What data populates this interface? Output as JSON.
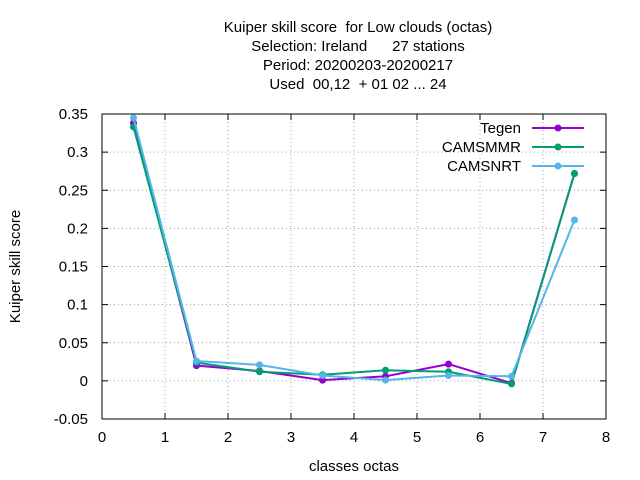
{
  "chart_data": {
    "type": "line",
    "title_lines": [
      "Kuiper skill score  for Low clouds (octas)",
      "Selection: Ireland      27 stations",
      "Period: 20200203-20200217",
      "Used  00,12  + 01 02 ... 24"
    ],
    "xlabel": "classes octas",
    "ylabel": "Kuiper skill score",
    "xlim": [
      0,
      8
    ],
    "ylim": [
      -0.05,
      0.35
    ],
    "xticks": [
      0,
      1,
      2,
      3,
      4,
      5,
      6,
      7,
      8
    ],
    "yticks": [
      -0.05,
      0,
      0.05,
      0.1,
      0.15,
      0.2,
      0.25,
      0.3,
      0.35
    ],
    "ytick_labels": [
      "-0.05",
      "0",
      "0.05",
      "0.1",
      "0.15",
      "0.2",
      "0.25",
      "0.3",
      "0.35"
    ],
    "grid": true,
    "legend_position": "top-right",
    "x": [
      0.5,
      1.5,
      2.5,
      3.5,
      4.5,
      5.5,
      6.5,
      7.5
    ],
    "series": [
      {
        "name": "Tegen",
        "color": "#9400d3",
        "values": [
          0.338,
          0.02,
          0.013,
          0.001,
          0.006,
          0.022,
          -0.003,
          0.272
        ]
      },
      {
        "name": "CAMSMMR",
        "color": "#009e73",
        "values": [
          0.333,
          0.024,
          0.012,
          0.008,
          0.014,
          0.012,
          -0.004,
          0.272
        ]
      },
      {
        "name": "CAMSNRT",
        "color": "#56b4e9",
        "values": [
          0.345,
          0.026,
          0.021,
          0.007,
          0.001,
          0.007,
          0.006,
          0.211
        ]
      }
    ]
  }
}
